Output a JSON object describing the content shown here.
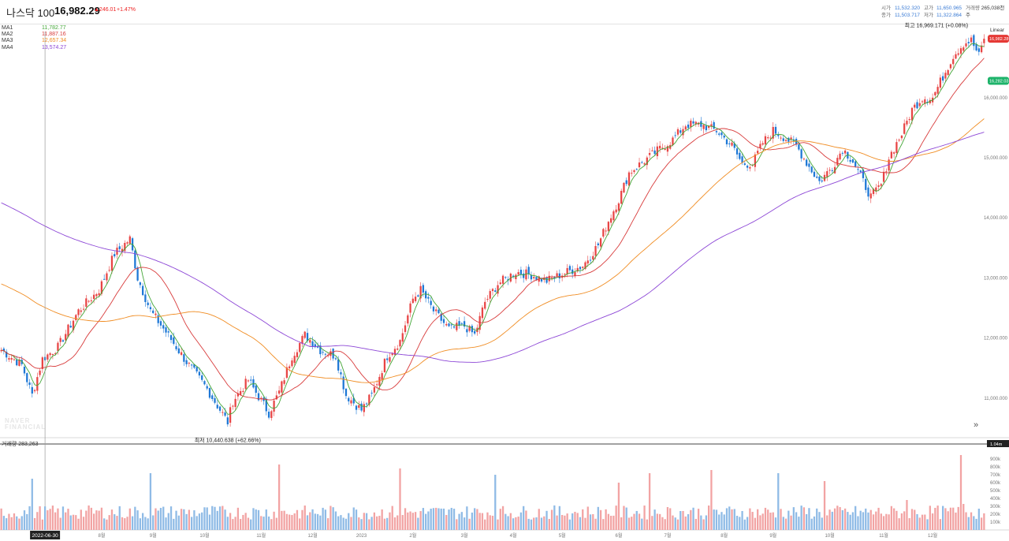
{
  "header": {
    "title": "나스닥 100",
    "price": "16,982.29",
    "change": "▲246.01",
    "change_pct": "+1.47%",
    "open_label": "시가",
    "open_value": "11,532.320",
    "close_label": "종가",
    "close_value": "11,503.717",
    "high_label": "고가",
    "high_value": "11,650.965",
    "low_label": "저가",
    "low_value": "11,322.864",
    "volume_label": "거래량",
    "volume_value": "265,038천주"
  },
  "scale_selector": "Linear",
  "watermark": [
    "NAVER",
    "FINANCIAL"
  ],
  "vol_title": "거래량 283,263",
  "colors": {
    "up": "#e84545",
    "down": "#1e78d6",
    "ma1": "#43a637",
    "ma2": "#d83b3b",
    "ma3": "#f08c22",
    "ma4": "#8c46d6",
    "vol_up": "#f2a3a3",
    "vol_down": "#8fbbe6"
  },
  "chart_data": {
    "type": "candlestick",
    "title": "나스닥 100",
    "ma_legend": [
      {
        "name": "MA1",
        "value": "11,782.77"
      },
      {
        "name": "MA2",
        "value": "11,887.16"
      },
      {
        "name": "MA3",
        "value": "12,657.34"
      },
      {
        "name": "MA4",
        "value": "13,574.27"
      }
    ],
    "price_axis_labels": [
      "16,000.000",
      "15,000.000",
      "14,000.000",
      "13,000.000",
      "12,000.000",
      "11,000.000"
    ],
    "price_axis_values": [
      16000,
      15000,
      14000,
      13000,
      12000,
      11000
    ],
    "ylim": [
      10380,
      17100
    ],
    "time_labels": [
      "2022-06-30",
      "8월",
      "9월",
      "10월",
      "11월",
      "12월",
      "2023",
      "2월",
      "3월",
      "4월",
      "5월",
      "6월",
      "7월",
      "8월",
      "9월",
      "10월",
      "11월",
      "12월"
    ],
    "time_label_index": [
      17,
      39,
      59,
      79,
      101,
      121,
      140,
      160,
      180,
      199,
      218,
      240,
      259,
      281,
      300,
      322,
      343,
      362
    ],
    "price_path_knots": [
      [
        0,
        11800
      ],
      [
        8,
        11550
      ],
      [
        12,
        11050
      ],
      [
        16,
        11650
      ],
      [
        22,
        11850
      ],
      [
        30,
        12450
      ],
      [
        38,
        12800
      ],
      [
        44,
        13400
      ],
      [
        50,
        13650
      ],
      [
        53,
        13000
      ],
      [
        58,
        12450
      ],
      [
        64,
        12100
      ],
      [
        72,
        11600
      ],
      [
        80,
        11150
      ],
      [
        88,
        10600
      ],
      [
        90,
        10950
      ],
      [
        96,
        11300
      ],
      [
        104,
        10750
      ],
      [
        108,
        11100
      ],
      [
        113,
        11700
      ],
      [
        118,
        12050
      ],
      [
        124,
        11800
      ],
      [
        130,
        11700
      ],
      [
        134,
        11050
      ],
      [
        140,
        10800
      ],
      [
        144,
        11050
      ],
      [
        150,
        11700
      ],
      [
        155,
        11950
      ],
      [
        160,
        12650
      ],
      [
        163,
        12800
      ],
      [
        168,
        12450
      ],
      [
        174,
        12150
      ],
      [
        180,
        12200
      ],
      [
        184,
        12050
      ],
      [
        188,
        12600
      ],
      [
        193,
        12900
      ],
      [
        200,
        13100
      ],
      [
        206,
        13050
      ],
      [
        212,
        12950
      ],
      [
        220,
        13100
      ],
      [
        226,
        13200
      ],
      [
        232,
        13550
      ],
      [
        236,
        13950
      ],
      [
        240,
        14300
      ],
      [
        244,
        14750
      ],
      [
        250,
        14950
      ],
      [
        256,
        15150
      ],
      [
        261,
        15300
      ],
      [
        266,
        15550
      ],
      [
        272,
        15550
      ],
      [
        278,
        15450
      ],
      [
        284,
        15200
      ],
      [
        288,
        14900
      ],
      [
        292,
        14900
      ],
      [
        296,
        15250
      ],
      [
        300,
        15450
      ],
      [
        304,
        15350
      ],
      [
        309,
        15200
      ],
      [
        314,
        14850
      ],
      [
        318,
        14600
      ],
      [
        323,
        14850
      ],
      [
        327,
        15150
      ],
      [
        331,
        14950
      ],
      [
        335,
        14600
      ],
      [
        338,
        14350
      ],
      [
        342,
        14550
      ],
      [
        345,
        15000
      ],
      [
        350,
        15400
      ],
      [
        354,
        15800
      ],
      [
        358,
        16000
      ],
      [
        362,
        16000
      ],
      [
        366,
        16350
      ],
      [
        370,
        16700
      ],
      [
        374,
        16900
      ],
      [
        377,
        16950
      ],
      [
        380,
        16700
      ],
      [
        382,
        16980
      ]
    ],
    "candle_count": 383,
    "ma_periods": [
      5,
      20,
      60,
      120
    ],
    "ma4_start_value": 14250,
    "max_annotation": "최고 16,969.171 (+0.08%)",
    "min_annotation": "최저 10,440.638 (+62.66%)",
    "last_price_tag": "16,982.289",
    "current_tag": "16,282.03",
    "volume": {
      "axis_labels": [
        "900k",
        "800k",
        "700k",
        "600k",
        "500k",
        "400k",
        "300k",
        "200k",
        "100k"
      ],
      "axis_values": [
        900000,
        800000,
        700000,
        600000,
        500000,
        400000,
        300000,
        200000,
        100000
      ],
      "ylim": [
        0,
        1040000
      ],
      "top_tag": "1.04m",
      "typical_value": 240000,
      "spikes": [
        [
          12,
          650000
        ],
        [
          58,
          720000
        ],
        [
          108,
          830000
        ],
        [
          155,
          780000
        ],
        [
          192,
          700000
        ],
        [
          240,
          600000
        ],
        [
          252,
          720000
        ],
        [
          276,
          760000
        ],
        [
          302,
          720000
        ],
        [
          320,
          620000
        ],
        [
          352,
          380000
        ],
        [
          373,
          950000
        ],
        [
          374,
          330000
        ],
        [
          380,
          270000
        ]
      ]
    },
    "crosshair_date": "2022-06-30"
  }
}
